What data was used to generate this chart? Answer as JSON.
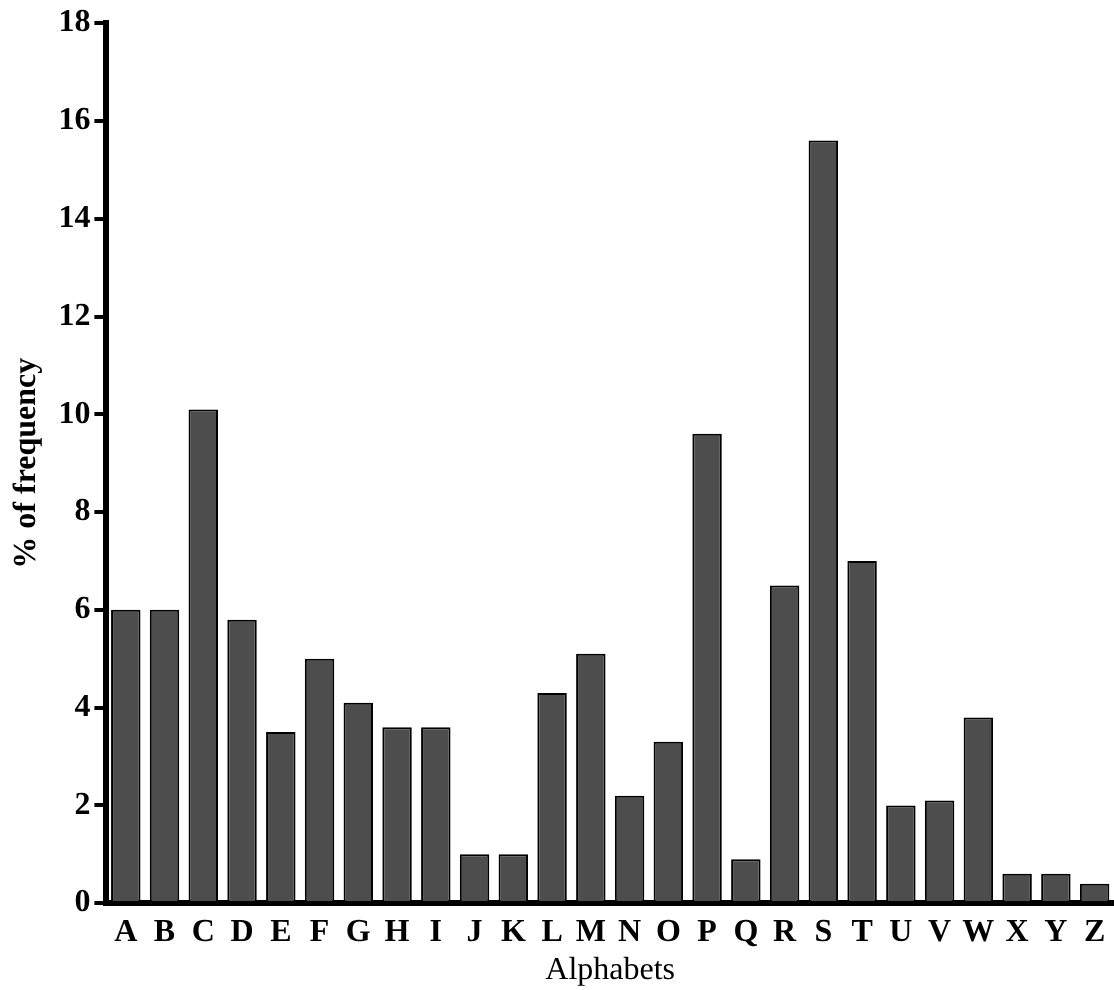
{
  "chart_data": {
    "type": "bar",
    "xlabel": "Alphabets",
    "ylabel": "% of frequency",
    "categories": [
      "A",
      "B",
      "C",
      "D",
      "E",
      "F",
      "G",
      "H",
      "I",
      "J",
      "K",
      "L",
      "M",
      "N",
      "O",
      "P",
      "Q",
      "R",
      "S",
      "T",
      "U",
      "V",
      "W",
      "X",
      "Y",
      "Z"
    ],
    "values": [
      6.0,
      6.0,
      10.1,
      5.8,
      3.5,
      5.0,
      4.1,
      3.6,
      3.6,
      1.0,
      1.0,
      4.3,
      5.1,
      2.2,
      3.3,
      9.6,
      0.9,
      6.5,
      15.6,
      7.0,
      2.0,
      2.1,
      3.8,
      0.6,
      0.6,
      0.4
    ],
    "color": "#4d4d4d",
    "ylim": [
      0,
      18
    ],
    "yticks": [
      0,
      2,
      4,
      6,
      8,
      10,
      12,
      14,
      16,
      18
    ],
    "grid": false,
    "legend": false
  }
}
